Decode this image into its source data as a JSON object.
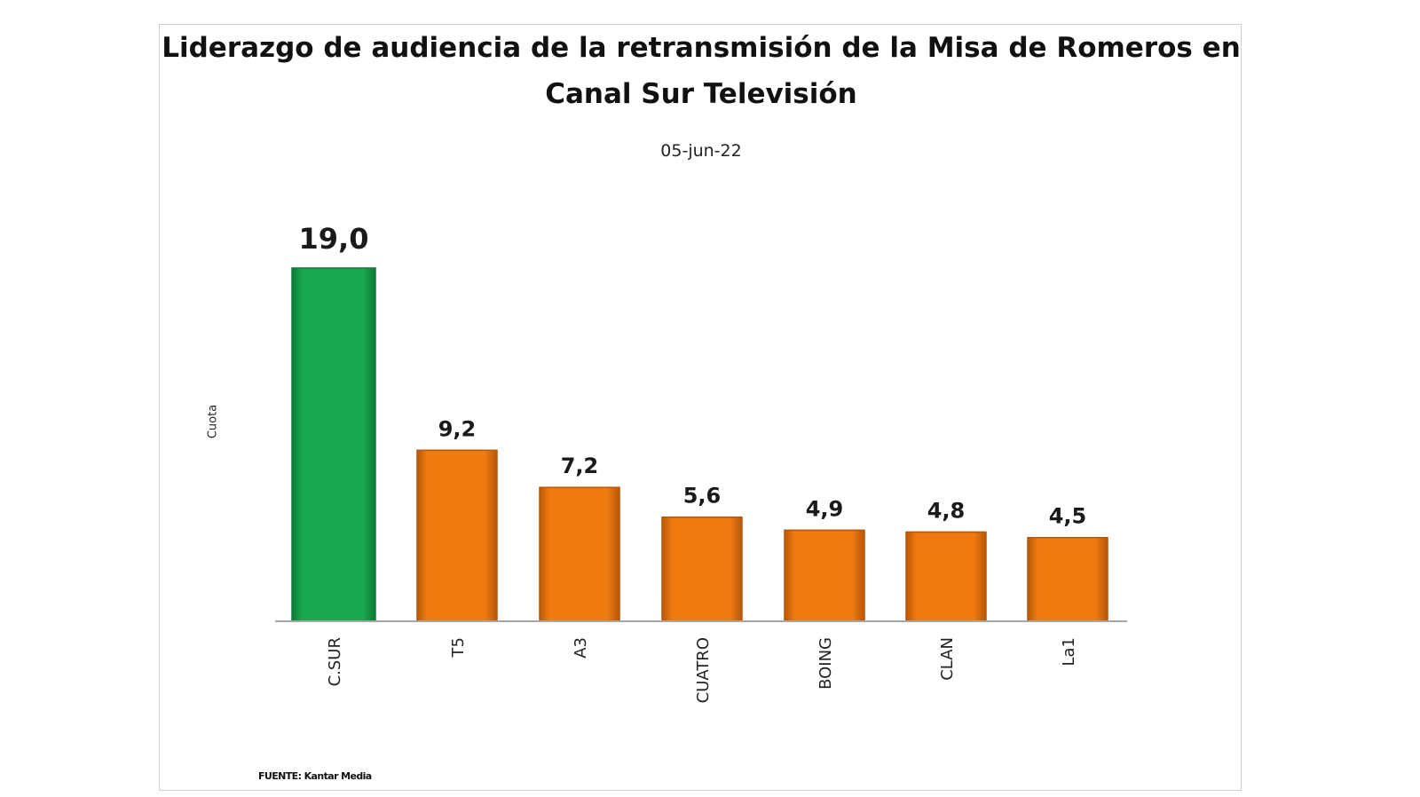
{
  "chart_data": {
    "type": "bar",
    "title": "Liderazgo de audiencia de la retransmisión de la Misa de Romeros en Canal Sur Televisión",
    "subtitle": "05-jun-22",
    "ylabel": "Cuota",
    "xlabel": "",
    "categories": [
      "C.SUR",
      "T5",
      "A3",
      "CUATRO",
      "BOING",
      "CLAN",
      "La1"
    ],
    "values": [
      19.0,
      9.2,
      7.2,
      5.6,
      4.9,
      4.8,
      4.5
    ],
    "value_labels": [
      "19,0",
      "9,2",
      "7,2",
      "5,6",
      "4,9",
      "4,8",
      "4,5"
    ],
    "ylim": [
      0,
      19.0
    ],
    "grid": false,
    "legend": "none",
    "colors": {
      "highlight": "#1aa84f",
      "highlight_dark": "#0e7a36",
      "bar": "#ee7a10",
      "bar_dark": "#b85708",
      "axis": "#a6a6a6"
    },
    "source": "FUENTE: Kantar Media"
  }
}
